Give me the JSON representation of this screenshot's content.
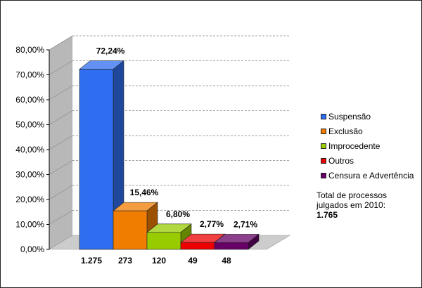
{
  "chart_data": {
    "type": "bar",
    "categories": [
      "1.275",
      "273",
      "120",
      "49",
      "48"
    ],
    "values": [
      72.24,
      15.46,
      6.8,
      2.77,
      2.71
    ],
    "data_labels": [
      "72,24%",
      "15,46%",
      "6,80%",
      "2,77%",
      "2,71%"
    ],
    "yticks": [
      "0,00%",
      "10,00%",
      "20,00%",
      "30,00%",
      "40,00%",
      "50,00%",
      "60,00%",
      "70,00%",
      "80,00%"
    ],
    "ylim": [
      0,
      80
    ],
    "grid": true,
    "three_d": true,
    "legend_position": "right",
    "series": [
      {
        "name": "Suspensão",
        "color": "#2f6ef0"
      },
      {
        "name": "Exclusão",
        "color": "#f07c00"
      },
      {
        "name": "Improcedente",
        "color": "#99cc00"
      },
      {
        "name": "Outros",
        "color": "#ee0000"
      },
      {
        "name": "Censura e Advertência",
        "color": "#660066"
      }
    ]
  },
  "total_note": {
    "line1": "Total de processos",
    "line2": "julgados em 2010:",
    "value": "1.765"
  }
}
